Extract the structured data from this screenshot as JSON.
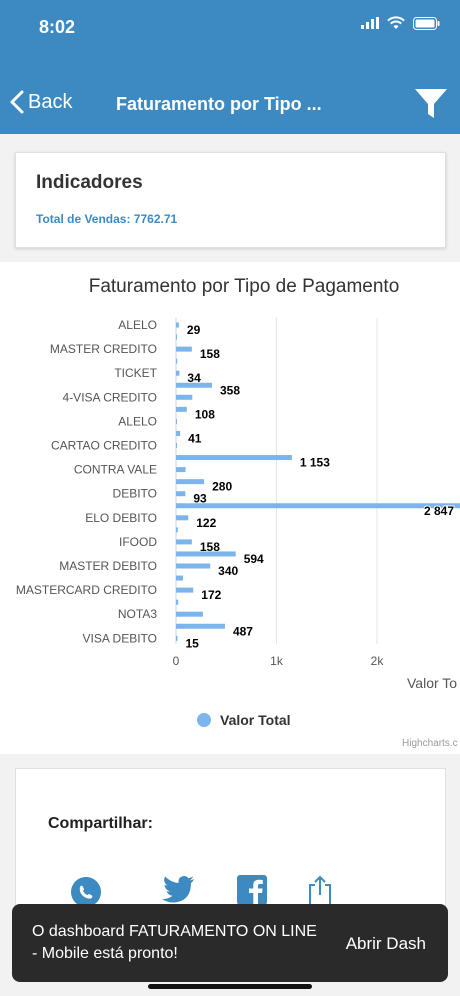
{
  "status_bar": {
    "time": "8:02",
    "icons": [
      "signal-icon",
      "wifi-icon",
      "battery-icon"
    ]
  },
  "nav": {
    "back_label": "Back",
    "title": "Faturamento por Tipo ...",
    "filter_icon": "filter-icon"
  },
  "indicators": {
    "title": "Indicadores",
    "total_label": "Total de Vendas: 7762.71"
  },
  "chart_data": {
    "type": "bar",
    "orientation": "horizontal",
    "title": "Faturamento por Tipo de Pagamento",
    "categories": [
      "ALELO",
      "",
      "MASTER CREDITO",
      "",
      "TICKET",
      "",
      "4-VISA CREDITO",
      "",
      "ALELO",
      "",
      "CARTAO CREDITO",
      "",
      "CONTRA VALE",
      "",
      "DEBITO",
      "",
      "ELO DEBITO",
      "",
      "IFOOD",
      "",
      "MASTER DEBITO",
      "",
      "MASTERCARD CREDITO",
      "",
      "NOTA3",
      "",
      "VISA DEBITO"
    ],
    "series": [
      {
        "name": "Valor Total",
        "values": [
          29,
          8,
          158,
          12,
          34,
          358,
          162,
          108,
          10,
          41,
          8,
          1153,
          95,
          280,
          93,
          2847,
          122,
          18,
          158,
          594,
          340,
          70,
          172,
          22,
          268,
          487,
          15
        ],
        "data_labels": [
          "29",
          "",
          "158",
          "",
          "34",
          "358",
          "",
          "108",
          "",
          "41",
          "",
          "1 153",
          "",
          "280",
          "93",
          "2 847",
          "122",
          "",
          "158",
          "594",
          "340",
          "",
          "172",
          "",
          "",
          "487",
          "15"
        ]
      }
    ],
    "xlim": [
      0,
      2847
    ],
    "x_ticks": [
      "0",
      "1k",
      "2k"
    ],
    "x_tick_values": [
      0,
      1000,
      2000
    ],
    "ylabel": "Valor To",
    "legend": {
      "position": "bottom-center",
      "label": "Valor Total"
    },
    "credits": "Highcharts.c",
    "color": "#7cb5ec",
    "grid": true
  },
  "share": {
    "title": "Compartilhar:",
    "icons": [
      "whatsapp-icon",
      "twitter-icon",
      "facebook-icon",
      "share-icon"
    ]
  },
  "toast": {
    "message": "O dashboard FATURAMENTO ON LINE - Mobile está pronto!",
    "action_label": "Abrir Dash"
  },
  "colors": {
    "header": "#3d8ac3",
    "accent": "#3d8ac3",
    "bar": "#7cb5ec"
  }
}
